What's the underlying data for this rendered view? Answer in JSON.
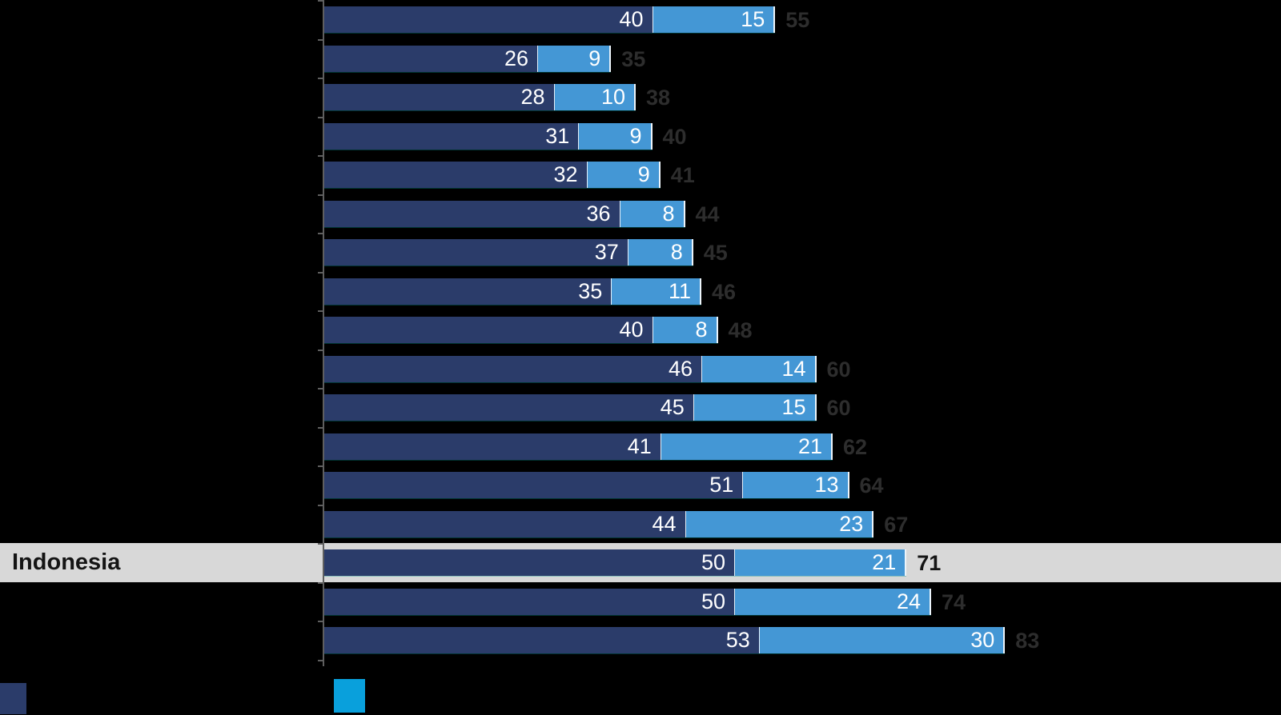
{
  "chart": {
    "background_color": "#000000",
    "axis_color": "#5f5f5f",
    "highlight_band_color": "#d8d8d8",
    "value_label_color": "#ffffff",
    "total_label_color": "#2d2d2d",
    "highlight_total_label_color": "#141414",
    "highlight_category_label_color": "#141414"
  },
  "chart_data": {
    "type": "bar",
    "orientation": "horizontal",
    "stacked": true,
    "title": "",
    "xlabel": "",
    "ylabel": "",
    "grid": false,
    "legend_position": "bottom-left",
    "categories": [
      "",
      "",
      "",
      "",
      "",
      "",
      "",
      "",
      "",
      "",
      "",
      "",
      "",
      "",
      "Indonesia",
      "",
      ""
    ],
    "series": [
      {
        "name": "dark-blue-series",
        "color": "#2b3c6a",
        "values": [
          40,
          26,
          28,
          31,
          32,
          36,
          37,
          35,
          40,
          46,
          45,
          41,
          51,
          44,
          50,
          50,
          53
        ]
      },
      {
        "name": "light-blue-series",
        "color": "#4497d5",
        "values": [
          15,
          9,
          10,
          9,
          9,
          8,
          8,
          11,
          8,
          14,
          15,
          21,
          13,
          23,
          21,
          24,
          30
        ]
      }
    ],
    "totals": [
      55,
      35,
      38,
      40,
      41,
      44,
      45,
      46,
      48,
      60,
      60,
      62,
      64,
      67,
      71,
      74,
      83
    ],
    "highlighted_index": 14,
    "highlighted_category_label": "Indonesia",
    "value_labels_position": "inside-right",
    "totals_position": "right-of-bar"
  },
  "highlight": {
    "label": "Indonesia"
  },
  "legend": {
    "swatches": [
      {
        "name": "dark-blue-swatch",
        "color": "#2b3c6a"
      },
      {
        "name": "light-blue-swatch",
        "color": "#09a0dc"
      }
    ]
  }
}
